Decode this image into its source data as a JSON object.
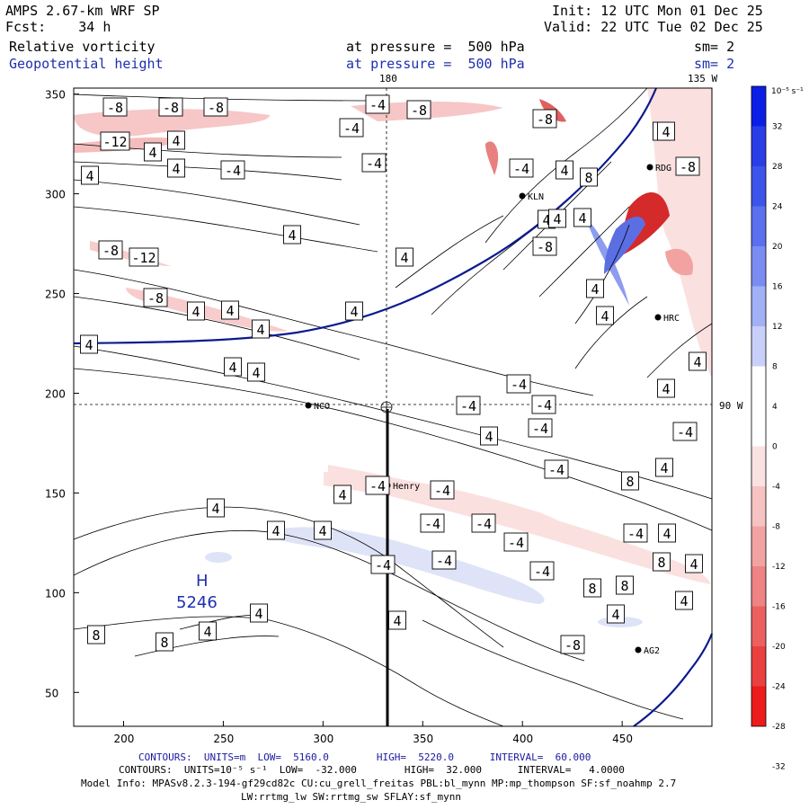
{
  "header": {
    "model": "AMPS 2.67-km WRF SP",
    "fcst": "Fcst:    34 h",
    "init": "Init: 12 UTC Mon 01 Dec 25",
    "valid": "Valid: 22 UTC Tue 02 Dec 25",
    "field1": "Relative vorticity",
    "field2": "Geopotential height",
    "level1": "at pressure =  500 hPa",
    "level2": "at pressure =  500 hPa",
    "sm1": "sm= 2",
    "sm2": "sm= 2"
  },
  "map": {
    "lon_top_180": "180",
    "lon_top_135w": "135 W",
    "lon_right_90w": "90 W",
    "high_label": "H",
    "high_value": "5246",
    "stations": [
      {
        "name": "NCO"
      },
      {
        "name": "Henry"
      },
      {
        "name": "KLN"
      },
      {
        "name": "RDG"
      },
      {
        "name": "HRC"
      },
      {
        "name": "AG2"
      }
    ],
    "x_ticks": [
      "200",
      "250",
      "300",
      "350",
      "400",
      "450"
    ],
    "y_ticks": [
      "350",
      "300",
      "250",
      "200",
      "150",
      "100",
      "50"
    ],
    "contour_labels": [
      "-8",
      "-8",
      "-8",
      "-4",
      "-8",
      "-8",
      "-12",
      "4",
      "4",
      "4",
      "4",
      "-4",
      "-4",
      "-4",
      "4",
      "4",
      "4",
      "8",
      "-8",
      "4",
      "4",
      "4",
      "-8",
      "-4",
      "4",
      "4",
      "-8",
      "-12",
      "4",
      "-8",
      "4",
      "4",
      "4",
      "4",
      "4",
      "4",
      "4",
      "4",
      "4",
      "-4",
      "4",
      "-4",
      "-4",
      "4",
      "-4",
      "-4",
      "-4",
      "4",
      "8",
      "-4",
      "4",
      "-4",
      "-4",
      "-4",
      "-4",
      "-4",
      "4",
      "-4",
      "8",
      "8",
      "8",
      "4",
      "4",
      "4",
      "4",
      "4",
      "4",
      "-4",
      "-4",
      "4",
      "4",
      "8",
      "8",
      "4",
      "-8"
    ]
  },
  "colorbar": {
    "unit": "10⁻⁵ s⁻¹",
    "labels": [
      "32",
      "28",
      "24",
      "20",
      "16",
      "12",
      "8",
      "4",
      "0",
      "-4",
      "-8",
      "-12",
      "-16",
      "-20",
      "-24",
      "-28",
      "-32"
    ],
    "colors": [
      "#0a1ee6",
      "#2a3ee8",
      "#3d54ea",
      "#5a70ee",
      "#7a8cf2",
      "#a2b0f6",
      "#c8d0fa",
      "#ffffff",
      "#ffffff",
      "#fbe2e2",
      "#f6c2c2",
      "#f3a2a2",
      "#ef8282",
      "#ec6060",
      "#ea4040",
      "#ec1c1c"
    ]
  },
  "footer": {
    "contours1": "CONTOURS:  UNITS=m  LOW=  5160.0        HIGH=  5220.0      INTERVAL=  60.000",
    "contours2": "CONTOURS:  UNITS=10⁻⁵ s⁻¹  LOW=  -32.000        HIGH=  32.000      INTERVAL=   4.0000",
    "model_info": "Model Info: MPASv8.2.3-194-gf29cd82c CU:cu_grell_freitas PBL:bl_mynn MP:mp_thompson SF:sf_noahmp 2.7",
    "model_info2": "LW:rrtmg_lw SW:rrtmg_sw SFLAY:sf_mynn"
  }
}
